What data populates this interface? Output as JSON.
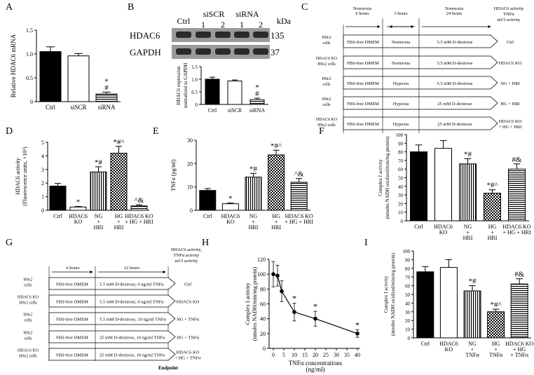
{
  "figure": {
    "panel_letters": [
      "A",
      "B",
      "C",
      "D",
      "E",
      "F",
      "G",
      "H",
      "I"
    ],
    "western_blot": {
      "lanes": [
        "Ctrl",
        "siSCR",
        "siRNA"
      ],
      "lane_numbers": [
        "1",
        "2",
        "1",
        "2"
      ],
      "kda_label": "kDa",
      "bands": [
        {
          "name": "HDAC6",
          "kda": "135"
        },
        {
          "name": "GAPDH",
          "kda": "37"
        }
      ],
      "band_color": "#2a2a2a"
    },
    "protocol_c": {
      "header_top": "HDAC6 activity",
      "header_mid": "TNFα",
      "header_bot": "mCI activity",
      "phases": [
        {
          "title": "Normoxia",
          "sub": "6 hours"
        },
        {
          "title": "3 hours",
          "sub": ""
        },
        {
          "title": "Normoxia",
          "sub": "24 hours"
        }
      ],
      "rows": [
        {
          "cells": [
            "H9c2",
            "cells"
          ],
          "media": "FBS-free DMEM",
          "cond": "Normoxia",
          "glucose": "5.5 mM D-dextrose",
          "group": [
            "Ctrl"
          ]
        },
        {
          "cells": [
            "HDAC6 KO",
            "H9c2 cells"
          ],
          "media": "FBS-free DMEM",
          "cond": "Normoxia",
          "glucose": "5.5 mM D-dextrose",
          "group": [
            "HDAC6 KO"
          ]
        },
        {
          "cells": [
            "H9c2",
            "cells"
          ],
          "media": "FBS-free DMEM",
          "cond": "Hypoxia",
          "glucose": "5.5 mM D-dextrose",
          "group": [
            "NG + HRI"
          ]
        },
        {
          "cells": [
            "H9c2",
            "cells"
          ],
          "media": "FBS-free DMEM",
          "cond": "Hypoxia",
          "glucose": "25 mM D-dextrose",
          "group": [
            "HG + HRI"
          ]
        },
        {
          "cells": [
            "HDAC6 KO",
            "H9c2 cells"
          ],
          "media": "FBS-free DMEM",
          "cond": "Hypoxia",
          "glucose": "25 mM D-dextrose",
          "group": [
            "HDAC6 KO",
            "+ HG + HRI"
          ]
        }
      ]
    },
    "protocol_g": {
      "header_top": "HDAC6 activity,",
      "header_mid": "TNFα activity",
      "header_bot": "mCI activity",
      "phases": [
        "6 hours",
        "12 hours"
      ],
      "endpoint": "Endpoint",
      "rows": [
        {
          "cells": [
            "H9c2",
            "cells"
          ],
          "media": "FBS-free DMEM",
          "treat": "5.5 mM D-dextrose, 0 ng/ml TNFα",
          "group": [
            "Ctrl"
          ]
        },
        {
          "cells": [
            "HDAC6 KO",
            "H9c2 cells"
          ],
          "media": "FBS-free DMEM",
          "treat": "5.5 mM D-dextrose, 0 ng/ml TNFα",
          "group": [
            "HDAC6 KO"
          ]
        },
        {
          "cells": [
            "H9c2",
            "cells"
          ],
          "media": "FBS-free DMEM",
          "treat": "5.5 mM D-dextrose, 10 ng/ml TNFα",
          "group": [
            "NG + TNFα"
          ]
        },
        {
          "cells": [
            "H9c2",
            "cells"
          ],
          "media": "FBS-free DMEM",
          "treat": "25 mM D-dextrose, 10 ng/ml TNFα",
          "group": [
            "HG + TNFα"
          ]
        },
        {
          "cells": [
            "HDAC6 KO",
            "H9c2 cells"
          ],
          "media": "FBS-free DMEM",
          "treat": "25 mM D-dextrose, 10 ng/ml TNFα",
          "group": [
            "HDAC6 KO",
            "+ HG + TNFα"
          ]
        }
      ]
    },
    "colors": {
      "ink": "#000000",
      "cyan": "#3b8fb0",
      "box": "#ffffff"
    }
  },
  "chart_data": [
    {
      "id": "A",
      "type": "bar",
      "ylabel": "Relative HDAC6 mRNA",
      "ylim": [
        0,
        1.5
      ],
      "yticks": [
        "0",
        "0.5",
        "1.0",
        "1.5"
      ],
      "ytick_values": [
        0,
        0.5,
        1,
        1.5
      ],
      "categories": [
        [
          "Ctrl"
        ],
        [
          "siSCR"
        ],
        [
          "siRNA"
        ]
      ],
      "values": [
        1.05,
        0.96,
        0.16
      ],
      "errors": [
        0.1,
        0.05,
        0.04
      ],
      "patterns": [
        "solid",
        "white",
        "hstripe"
      ],
      "annotations": [
        "",
        "",
        "*\n#"
      ]
    },
    {
      "id": "B",
      "type": "bar",
      "ylabel": "HDAC6 expression normalized to GAPDH",
      "ylabel_lines": [
        "HDAC6 expression",
        "normalized to GAPDH"
      ],
      "ylim": [
        0,
        1.5
      ],
      "yticks": [
        "0",
        "0.5",
        "1.0",
        "1.5"
      ],
      "ytick_values": [
        0,
        0.5,
        1,
        1.5
      ],
      "categories": [
        [
          "Ctrl"
        ],
        [
          "siSCR"
        ],
        [
          "siRNA"
        ]
      ],
      "values": [
        1.0,
        0.93,
        0.19
      ],
      "errors": [
        0.08,
        0.04,
        0.06
      ],
      "patterns": [
        "solid",
        "white",
        "hstripe"
      ],
      "annotations": [
        "",
        "",
        "*\n#"
      ]
    },
    {
      "id": "D",
      "type": "bar",
      "ylabel": "HDAC6 activity (Fluorescence units, ×10⁵)",
      "ylabel_lines": [
        "HDAC6 activity",
        "(Fluorescence units, ×10⁵)"
      ],
      "ylim": [
        0,
        5
      ],
      "yticks": [
        "0",
        "1",
        "2",
        "3",
        "4",
        "5"
      ],
      "ytick_values": [
        0,
        1,
        2,
        3,
        4,
        5
      ],
      "categories": [
        [
          "Ctrl"
        ],
        [
          "HDAC6",
          "KO"
        ],
        [
          "NG",
          "+",
          "HRI"
        ],
        [
          "HG",
          "+",
          "HRI"
        ],
        [
          "HDAC6 KO",
          "+ HG + HRI"
        ]
      ],
      "values": [
        1.78,
        0.24,
        2.82,
        4.2,
        0.32
      ],
      "errors": [
        0.2,
        0.04,
        0.38,
        0.5,
        0.08
      ],
      "patterns": [
        "solid",
        "white",
        "vstripe",
        "checker",
        "hstripe"
      ],
      "annotations": [
        "",
        "*",
        "*#",
        "*#^",
        "^&"
      ]
    },
    {
      "id": "E",
      "type": "bar",
      "ylabel": "TNFα (pg/ml)",
      "ylim": [
        0,
        30
      ],
      "yticks": [
        "0",
        "10",
        "20",
        "30"
      ],
      "ytick_values": [
        0,
        10,
        20,
        30
      ],
      "categories": [
        [
          "Ctrl"
        ],
        [
          "HDAC6",
          "KO"
        ],
        [
          "NG",
          "+",
          "HRI"
        ],
        [
          "HG",
          "+",
          "HRI"
        ],
        [
          "HDAC6 KO",
          "+ HG + HRI"
        ]
      ],
      "values": [
        8.5,
        2.8,
        14.2,
        23.7,
        12.0
      ],
      "errors": [
        0.8,
        0.3,
        1.6,
        2.0,
        1.6
      ],
      "patterns": [
        "solid",
        "white",
        "vstripe",
        "checker",
        "hstripe"
      ],
      "annotations": [
        "",
        "*",
        "*#",
        "*#^",
        "^&"
      ]
    },
    {
      "id": "F",
      "type": "bar",
      "ylabel": "Complex I activity (nmoles NADH oxidized/min/mg protein)",
      "ylabel_lines": [
        "Complex I activity",
        "(nmoles NADH oxidized/min/mg protein)"
      ],
      "ylim": [
        0,
        100
      ],
      "yticks": [
        "0",
        "10",
        "20",
        "30",
        "40",
        "50",
        "60",
        "70",
        "80",
        "90",
        "100"
      ],
      "ytick_values": [
        0,
        10,
        20,
        30,
        40,
        50,
        60,
        70,
        80,
        90,
        100
      ],
      "categories": [
        [
          "Ctrl"
        ],
        [
          "HDAC6",
          "KO"
        ],
        [
          "NG",
          "+",
          "HRI"
        ],
        [
          "HG",
          "+",
          "HRI"
        ],
        [
          "HDAC6 KO",
          "+ HG + HRI"
        ]
      ],
      "values": [
        80,
        84,
        66,
        32,
        60
      ],
      "errors": [
        8,
        9,
        6,
        4,
        6
      ],
      "patterns": [
        "solid",
        "white",
        "vstripe",
        "checker",
        "hstripe"
      ],
      "annotations": [
        "",
        "",
        "*#",
        "*#^",
        "#&"
      ]
    },
    {
      "id": "H",
      "type": "line",
      "ylabel": "Complex I activity (nmoles NADH/min/mg protein)",
      "ylabel_lines": [
        "Complex I activity",
        "(nmoles NADH/min/mg protein)"
      ],
      "xlabel_lines": [
        "TNFα concentrations",
        "(ng/ml)"
      ],
      "xlim": [
        0,
        40
      ],
      "ylim": [
        0,
        120
      ],
      "xticks": [
        "0",
        "5",
        "10",
        "15",
        "20",
        "25",
        "30",
        "35",
        "40"
      ],
      "xtick_values": [
        0,
        5,
        10,
        15,
        20,
        25,
        30,
        35,
        40
      ],
      "yticks": [
        "0",
        "20",
        "40",
        "60",
        "80",
        "100",
        "120"
      ],
      "ytick_values": [
        0,
        20,
        40,
        60,
        80,
        100,
        120
      ],
      "x": [
        0,
        2,
        4,
        10,
        20,
        40
      ],
      "y": [
        100,
        98,
        77,
        49,
        40,
        20
      ],
      "errors": [
        17,
        14,
        14,
        12,
        10,
        5
      ],
      "annotations": [
        "",
        "",
        "",
        "*",
        "*",
        "*"
      ]
    },
    {
      "id": "I",
      "type": "bar",
      "ylabel": "Complex I activity (nmoles NADH oxidized/min/mg protein)",
      "ylabel_lines": [
        "Complex I activity",
        "(nmoles NADH oxidized/min/mg protein)"
      ],
      "ylim": [
        0,
        100
      ],
      "yticks": [
        "0",
        "10",
        "20",
        "30",
        "40",
        "50",
        "60",
        "70",
        "80",
        "90",
        "100"
      ],
      "ytick_values": [
        0,
        10,
        20,
        30,
        40,
        50,
        60,
        70,
        80,
        90,
        100
      ],
      "categories": [
        [
          "Ctrl"
        ],
        [
          "HDAC6",
          "KO"
        ],
        [
          "NG",
          "+",
          "TNFα"
        ],
        [
          "HG",
          "+",
          "TNFα"
        ],
        [
          "HDAC6 KO",
          "+ HG",
          "+ TNFα"
        ]
      ],
      "values": [
        76,
        81,
        54,
        30,
        62
      ],
      "errors": [
        6,
        9,
        6,
        3,
        6
      ],
      "patterns": [
        "solid",
        "white",
        "vstripe",
        "checker",
        "hstripe"
      ],
      "annotations": [
        "",
        "",
        "*#",
        "*#^",
        "#&"
      ]
    }
  ]
}
